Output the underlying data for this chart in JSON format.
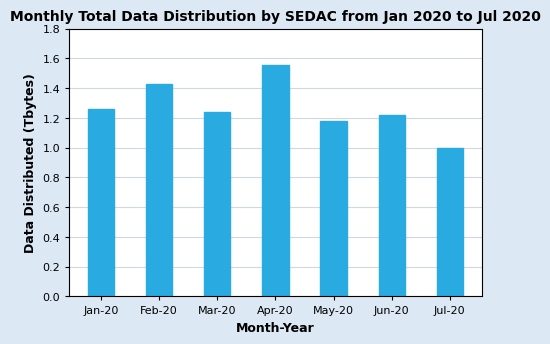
{
  "title": "Monthly Total Data Distribution by SEDAC from Jan 2020 to Jul 2020",
  "xlabel": "Month-Year",
  "ylabel": "Data Distributed (Tbytes)",
  "categories": [
    "Jan-20",
    "Feb-20",
    "Mar-20",
    "Apr-20",
    "May-20",
    "Jun-20",
    "Jul-20"
  ],
  "values": [
    1.26,
    1.43,
    1.24,
    1.555,
    1.18,
    1.22,
    1.0
  ],
  "bar_color": "#29ABE2",
  "ylim": [
    0,
    1.8
  ],
  "yticks": [
    0,
    0.2,
    0.4,
    0.6,
    0.8,
    1.0,
    1.2,
    1.4,
    1.6,
    1.8
  ],
  "plot_bg_color": "#ffffff",
  "fig_bg_color": "#dce9f5",
  "grid_color": "#d0d8e0",
  "title_fontsize": 10,
  "label_fontsize": 9,
  "tick_fontsize": 8,
  "bar_width": 0.45
}
